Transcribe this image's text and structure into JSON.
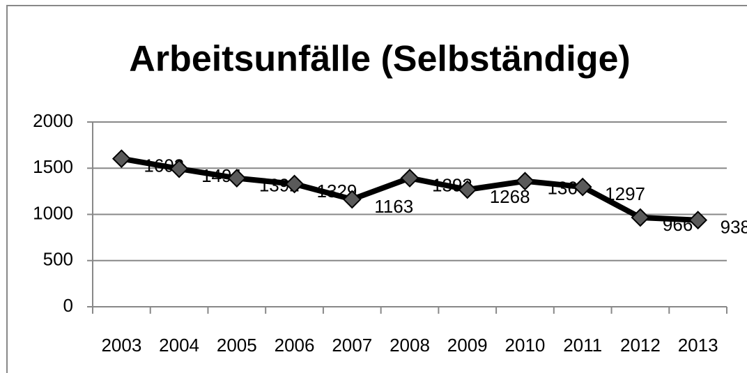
{
  "chart_data": {
    "type": "line",
    "title": "Arbeitsunfälle (Selbständige)",
    "categories": [
      "2003",
      "2004",
      "2005",
      "2006",
      "2007",
      "2008",
      "2009",
      "2010",
      "2011",
      "2012",
      "2013"
    ],
    "series": [
      {
        "name": "Arbeitsunfälle",
        "color": "#000000",
        "marker_color": "#5a5a5a",
        "values": [
          1603,
          1494,
          1392,
          1329,
          1163,
          1393,
          1268,
          1360,
          1297,
          966,
          938
        ]
      }
    ],
    "ylim": [
      0,
      2000
    ],
    "yticks": [
      0,
      500,
      1000,
      1500,
      2000
    ],
    "grid": true
  }
}
